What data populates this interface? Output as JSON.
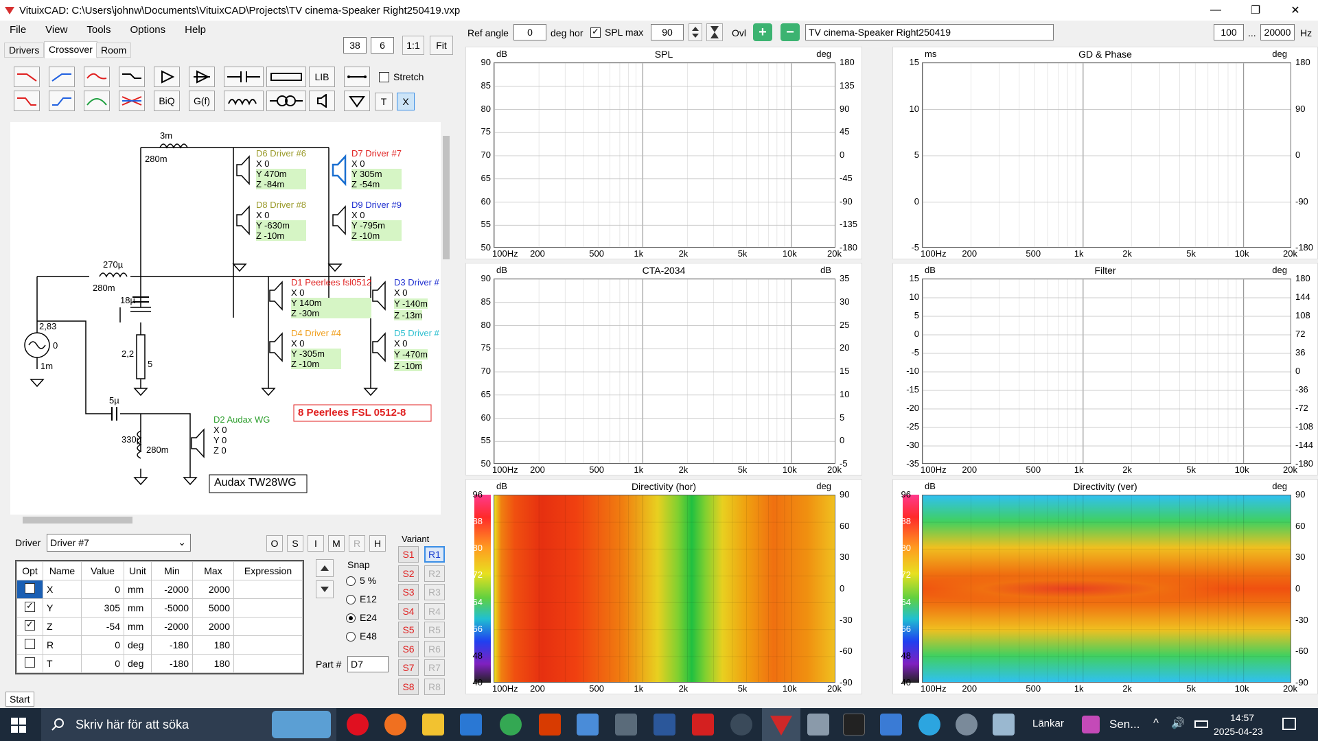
{
  "window": {
    "title": "VituixCAD: C:\\Users\\johnw\\Documents\\VituixCAD\\Projects\\TV cinema-Speaker Right250419.vxp",
    "min": "—",
    "max": "❐",
    "close": "✕"
  },
  "menu": [
    "File",
    "View",
    "Tools",
    "Options",
    "Help"
  ],
  "tabs": [
    "Drivers",
    "Crossover",
    "Room"
  ],
  "zoom": {
    "a": "38",
    "b": "6",
    "one": "1:1",
    "fit": "Fit"
  },
  "toolbar": {
    "ref_angle_label": "Ref angle",
    "ref_angle": "0",
    "deg_hor": "deg hor",
    "splmax_label": "SPL max",
    "splmax": "90",
    "ovl": "Ovl",
    "project": "TV cinema-Speaker Right250419",
    "f_from": "100",
    "dots": "...",
    "f_to": "20000",
    "hz": "Hz"
  },
  "tools": {
    "lib": "LIB",
    "stretch": "Stretch",
    "biq": "BiQ",
    "gf": "G(f)",
    "t": "T",
    "x": "X"
  },
  "schematic": {
    "l1": "3m",
    "l1b": "280m",
    "l2": "270µ",
    "l2b": "280m",
    "c1": "18µ",
    "r1": "2,2",
    "r1b": "5",
    "src_v": "2,83",
    "src_z": "0",
    "src_r": "1m",
    "c2": "5µ",
    "l3": "330µ",
    "l3b": "280m",
    "d6": {
      "name": "D6 Driver #6",
      "x": "X 0",
      "y": "Y 470m",
      "z": "Z -84m"
    },
    "d7": {
      "name": "D7 Driver #7",
      "x": "X 0",
      "y": "Y 305m",
      "z": "Z -54m"
    },
    "d8": {
      "name": "D8 Driver #8",
      "x": "X 0",
      "y": "Y -630m",
      "z": "Z -10m"
    },
    "d9": {
      "name": "D9 Driver #9",
      "x": "X 0",
      "y": "Y -795m",
      "z": "Z -10m"
    },
    "d1": {
      "name": "D1 Peerlees fsl0512",
      "x": "X 0",
      "y": "Y 140m",
      "z": "Z -30m"
    },
    "d3": {
      "name": "D3 Driver #",
      "x": "X 0",
      "y": "Y -140m",
      "z": "Z -13m"
    },
    "d4": {
      "name": "D4 Driver #4",
      "x": "X 0",
      "y": "Y -305m",
      "z": "Z -10m"
    },
    "d5": {
      "name": "D5 Driver #",
      "x": "X 0",
      "y": "Y -470m",
      "z": "Z -10m"
    },
    "d2": {
      "name": "D2 Audax WG",
      "x": "X 0",
      "y": "Y 0",
      "z": "Z 0"
    },
    "note1": "8 Peerlees FSL 0512-8",
    "note2": "Audax TW28WG"
  },
  "driver": {
    "label": "Driver",
    "selected": "Driver #7",
    "buttons": [
      "O",
      "S",
      "I",
      "M",
      "R",
      "H"
    ]
  },
  "params": {
    "headers": [
      "Opt",
      "Name",
      "Value",
      "Unit",
      "Min",
      "Max",
      "Expression"
    ],
    "rows": [
      [
        "",
        "X",
        "0",
        "mm",
        "-2000",
        "2000",
        ""
      ],
      [
        "",
        "Y",
        "305",
        "mm",
        "-5000",
        "5000",
        ""
      ],
      [
        "",
        "Z",
        "-54",
        "mm",
        "-2000",
        "2000",
        ""
      ],
      [
        "",
        "R",
        "0",
        "deg",
        "-180",
        "180",
        ""
      ],
      [
        "",
        "T",
        "0",
        "deg",
        "-180",
        "180",
        ""
      ]
    ],
    "checked": [
      false,
      true,
      true,
      false,
      false
    ]
  },
  "snap": {
    "label": "Snap",
    "options": [
      "5 %",
      "E12",
      "E24",
      "E48"
    ],
    "selected": 2
  },
  "part": {
    "label": "Part #",
    "value": "D7"
  },
  "variant": {
    "label": "Variant",
    "s": [
      "S1",
      "S2",
      "S3",
      "S4",
      "S5",
      "S6",
      "S7",
      "S8"
    ],
    "r": [
      "R1",
      "R2",
      "R3",
      "R4",
      "R5",
      "R6",
      "R7",
      "R8"
    ]
  },
  "start": "Start",
  "panels": {
    "spl": {
      "title": "SPL",
      "yunit": "dB",
      "y2unit": "deg",
      "y": [
        "90",
        "85",
        "80",
        "75",
        "70",
        "65",
        "60",
        "55",
        "50"
      ],
      "y2": [
        "180",
        "135",
        "90",
        "45",
        "0",
        "-45",
        "-90",
        "-135",
        "-180"
      ]
    },
    "gd": {
      "title": "GD & Phase",
      "yunit": "ms",
      "y2unit": "deg",
      "y": [
        "15",
        "10",
        "5",
        "0",
        "-5"
      ],
      "y2": [
        "180",
        "90",
        "0",
        "-90",
        "-180"
      ]
    },
    "cta": {
      "title": "CTA-2034",
      "yunit": "dB",
      "y2unit": "dB",
      "y": [
        "90",
        "85",
        "80",
        "75",
        "70",
        "65",
        "60",
        "55",
        "50"
      ],
      "y2": [
        "35",
        "30",
        "25",
        "20",
        "15",
        "10",
        "5",
        "0",
        "-5"
      ]
    },
    "filter": {
      "title": "Filter",
      "yunit": "dB",
      "y2unit": "deg",
      "y": [
        "15",
        "10",
        "5",
        "0",
        "-5",
        "-10",
        "-15",
        "-20",
        "-25",
        "-30",
        "-35"
      ],
      "y2": [
        "180",
        "144",
        "108",
        "72",
        "36",
        "0",
        "-36",
        "-72",
        "-108",
        "-144",
        "-180"
      ]
    },
    "dirh": {
      "title": "Directivity (hor)",
      "yunit": "dB",
      "y2unit": "deg",
      "y": [
        "96",
        "88",
        "80",
        "72",
        "64",
        "56",
        "48",
        "40"
      ],
      "y2": [
        "90",
        "60",
        "30",
        "0",
        "-30",
        "-60",
        "-90"
      ]
    },
    "dirv": {
      "title": "Directivity (ver)",
      "yunit": "dB",
      "y2unit": "deg",
      "y": [
        "96",
        "88",
        "80",
        "72",
        "64",
        "56",
        "48",
        "40"
      ],
      "y2": [
        "90",
        "60",
        "30",
        "0",
        "-30",
        "-60",
        "-90"
      ]
    },
    "x": [
      "100Hz",
      "200",
      "500",
      "1k",
      "2k",
      "5k",
      "10k",
      "20k"
    ]
  },
  "taskbar": {
    "search": "Skriv här för att söka",
    "links": "Länkar",
    "sen": "Sen...",
    "time": "14:57",
    "date": "2025-04-23"
  }
}
